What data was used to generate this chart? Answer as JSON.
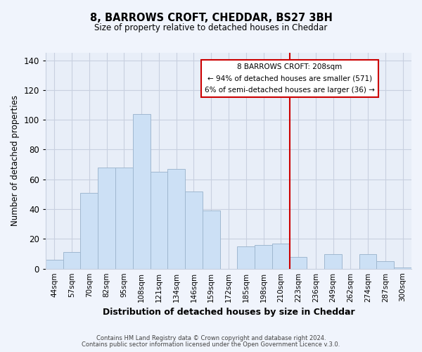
{
  "title": "8, BARROWS CROFT, CHEDDAR, BS27 3BH",
  "subtitle": "Size of property relative to detached houses in Cheddar",
  "xlabel": "Distribution of detached houses by size in Cheddar",
  "ylabel": "Number of detached properties",
  "bar_labels": [
    "44sqm",
    "57sqm",
    "70sqm",
    "82sqm",
    "95sqm",
    "108sqm",
    "121sqm",
    "134sqm",
    "146sqm",
    "159sqm",
    "172sqm",
    "185sqm",
    "198sqm",
    "210sqm",
    "223sqm",
    "236sqm",
    "249sqm",
    "262sqm",
    "274sqm",
    "287sqm",
    "300sqm"
  ],
  "bar_values": [
    6,
    11,
    51,
    68,
    68,
    104,
    65,
    67,
    52,
    39,
    0,
    15,
    16,
    17,
    8,
    0,
    10,
    0,
    10,
    5,
    1
  ],
  "bar_color": "#cce0f5",
  "bar_edge_color": "#a0b8d0",
  "vline_x_index": 13,
  "vline_color": "#cc0000",
  "ylim": [
    0,
    145
  ],
  "yticks": [
    0,
    20,
    40,
    60,
    80,
    100,
    120,
    140
  ],
  "annotation_title": "8 BARROWS CROFT: 208sqm",
  "annotation_line1": "← 94% of detached houses are smaller (571)",
  "annotation_line2": "6% of semi-detached houses are larger (36) →",
  "annotation_box_color": "#ffffff",
  "annotation_box_edge": "#cc0000",
  "footer_line1": "Contains HM Land Registry data © Crown copyright and database right 2024.",
  "footer_line2": "Contains public sector information licensed under the Open Government Licence v.3.0.",
  "background_color": "#f0f4fc",
  "plot_bg_color": "#e8eef8",
  "grid_color": "#c8d0e0"
}
